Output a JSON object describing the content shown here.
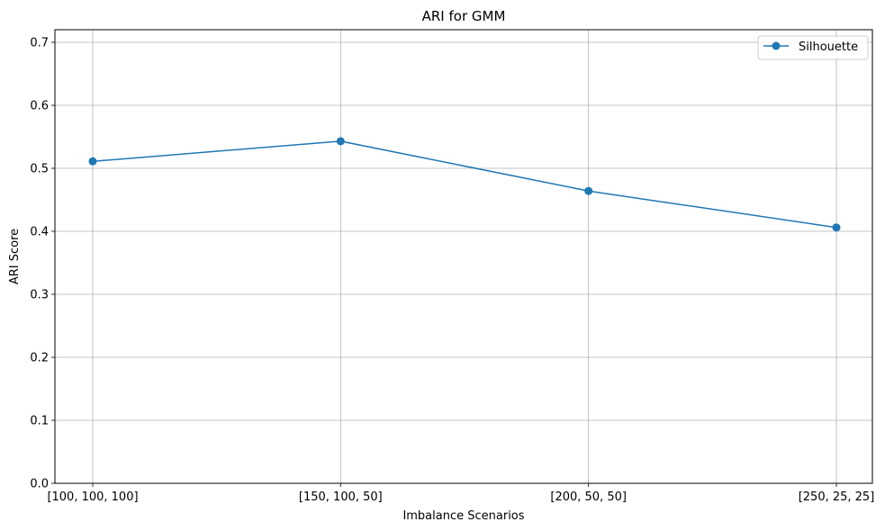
{
  "chart_data": {
    "type": "line",
    "title": "ARI for GMM",
    "xlabel": "Imbalance Scenarios",
    "ylabel": "ARI Score",
    "categories": [
      "[100, 100, 100]",
      "[150, 100, 50]",
      "[200, 50, 50]",
      "[250, 25, 25]"
    ],
    "series": [
      {
        "name": "Silhouette",
        "values": [
          0.511,
          0.543,
          0.464,
          0.406
        ],
        "color": "#1f77b4",
        "marker": "circle"
      }
    ],
    "ylim": [
      0,
      0.72
    ],
    "yticks": [
      "0.0",
      "0.1",
      "0.2",
      "0.3",
      "0.4",
      "0.5",
      "0.6",
      "0.7"
    ],
    "grid": true,
    "legend_position": "top-right"
  }
}
